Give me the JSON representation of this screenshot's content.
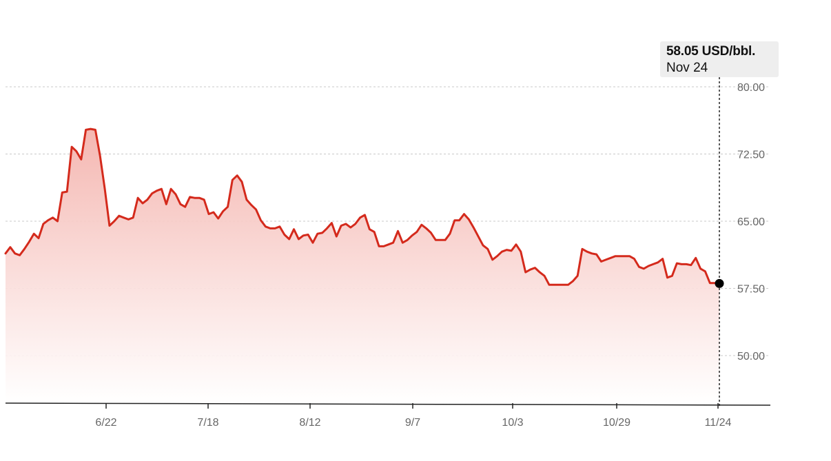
{
  "tooltip": {
    "value_text": "58.05 USD/bbl.",
    "date_text": "Nov 24"
  },
  "colors": {
    "line": "#d42a1c",
    "fill_top": "#f4b3ad",
    "fill_bottom": "#ffffff",
    "grid": "#c8c8c8",
    "axis": "#222222",
    "marker": "#000000"
  },
  "chart_data": {
    "type": "area",
    "unit": "USD/bbl.",
    "x_tick_labels": [
      "6/22",
      "7/18",
      "8/12",
      "9/7",
      "10/3",
      "10/29",
      "11/24"
    ],
    "y_tick_labels": [
      "80.00",
      "72.50",
      "65.00",
      "57.50",
      "50.00"
    ],
    "y_ticks": [
      80,
      72.5,
      65,
      57.5,
      50
    ],
    "ylim": [
      45,
      82
    ],
    "grid": "horizontal dashed",
    "highlighted_point": {
      "date": "Nov 24",
      "value": 58.05
    },
    "series": [
      {
        "values": [
          61.4,
          62.1,
          61.4,
          61.2,
          61.9,
          62.7,
          63.6,
          63.1,
          64.7,
          65.1,
          65.4,
          65.0,
          68.2,
          68.3,
          73.3,
          72.8,
          71.9,
          75.2,
          75.3,
          75.2,
          72.3,
          68.6,
          64.5,
          65.0,
          65.6,
          65.4,
          65.2,
          65.4,
          67.6,
          67.0,
          67.4,
          68.1,
          68.4,
          68.6,
          66.9,
          68.6,
          68.0,
          66.9,
          66.6,
          67.7,
          67.6,
          67.6,
          67.4,
          65.8,
          66.0,
          65.3,
          66.1,
          66.6,
          69.6,
          70.1,
          69.4,
          67.4,
          66.8,
          66.3,
          65.1,
          64.4,
          64.2,
          64.2,
          64.4,
          63.5,
          63.0,
          64.1,
          63.0,
          63.4,
          63.5,
          62.6,
          63.6,
          63.7,
          64.2,
          64.8,
          63.3,
          64.5,
          64.7,
          64.3,
          64.7,
          65.4,
          65.7,
          64.1,
          63.8,
          62.2,
          62.2,
          62.4,
          62.6,
          63.9,
          62.6,
          62.9,
          63.4,
          63.8,
          64.6,
          64.2,
          63.7,
          62.9,
          62.9,
          62.9,
          63.6,
          65.1,
          65.1,
          65.8,
          65.2,
          64.3,
          63.3,
          62.3,
          61.9,
          60.7,
          61.1,
          61.6,
          61.8,
          61.7,
          62.4,
          61.6,
          59.3,
          59.6,
          59.8,
          59.3,
          58.9,
          57.9,
          57.9,
          57.9,
          57.9,
          57.9,
          58.3,
          58.9,
          61.9,
          61.6,
          61.4,
          61.3,
          60.5,
          60.7,
          60.9,
          61.1,
          61.1,
          61.1,
          61.1,
          60.8,
          59.9,
          59.7,
          60.0,
          60.2,
          60.4,
          60.8,
          58.7,
          58.9,
          60.3,
          60.2,
          60.2,
          60.1,
          60.9,
          59.7,
          59.4,
          58.1,
          58.1,
          58.05
        ]
      }
    ]
  }
}
